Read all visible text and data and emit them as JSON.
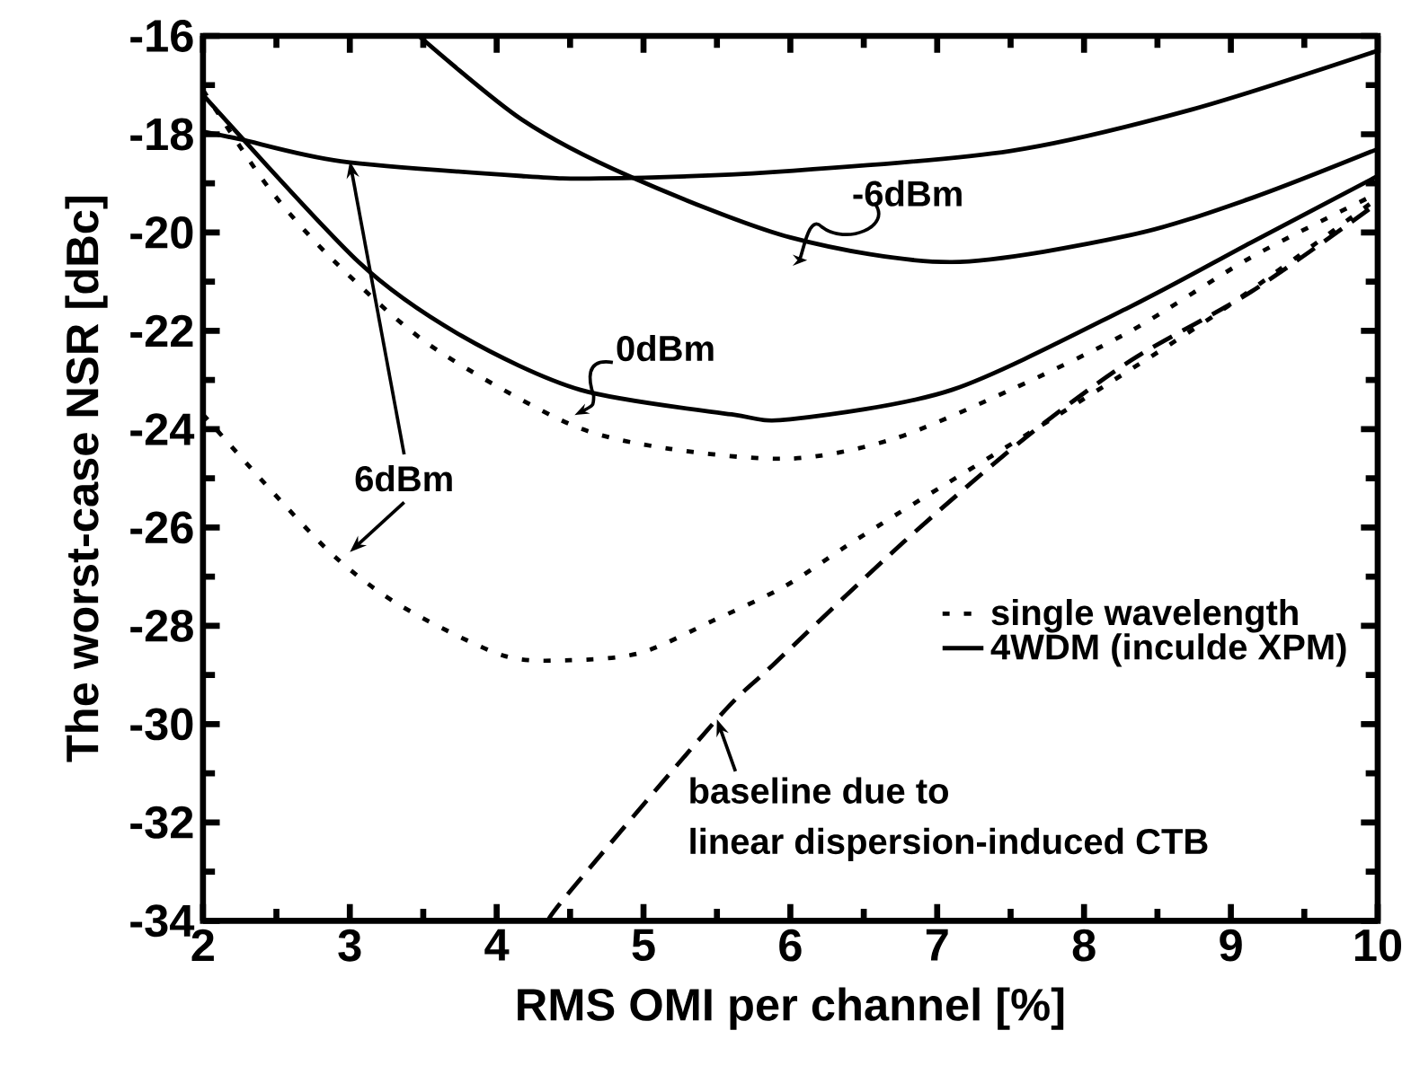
{
  "chart_data": {
    "type": "line",
    "xlabel": "RMS OMI per channel [%]",
    "ylabel": "The worst-case NSR [dBc]",
    "xlim": [
      2,
      10
    ],
    "ylim": [
      -34,
      -16
    ],
    "xticks": [
      2,
      3,
      4,
      5,
      6,
      7,
      8,
      9,
      10
    ],
    "yticks": [
      -34,
      -32,
      -30,
      -28,
      -26,
      -24,
      -22,
      -20,
      -18,
      -16
    ],
    "grid": false,
    "legend": "bottom right",
    "marker": "none",
    "series": [
      {
        "name": "single wavelength",
        "color": "#000000",
        "line_style": "dotted",
        "x": [
          2,
          2.45,
          2.9,
          3.55,
          4.5,
          5.18,
          6.0,
          6.7,
          7.5,
          8.32,
          9.14,
          10
        ],
        "values": [
          -17.1,
          -19.1,
          -20.6,
          -22.3,
          -23.9,
          -24.4,
          -24.6,
          -24.2,
          -23.2,
          -22.0,
          -20.5,
          -19.2
        ]
      },
      {
        "name": "4WDM (inculde XPM)",
        "color": "#000000",
        "line_style": "solid",
        "x": [
          2,
          3.06,
          3.76,
          4.57,
          5.6,
          6.0,
          7.1,
          8.32,
          9.14,
          10
        ],
        "values": [
          -17.2,
          -20.6,
          -22.1,
          -23.2,
          -23.7,
          -23.8,
          -23.2,
          -21.5,
          -20.2,
          -18.85
        ]
      },
      {
        "color": "#000000",
        "line_style": "solid",
        "x": [
          3.47,
          4.17,
          4.9,
          6.0,
          7.1,
          8.32,
          9.14,
          10
        ],
        "values": [
          -16.0,
          -17.7,
          -18.85,
          -20.1,
          -20.6,
          -20.05,
          -19.3,
          -18.3
        ]
      },
      {
        "color": "#000000",
        "line_style": "solid",
        "x": [
          2,
          2.25,
          2.94,
          4.17,
          4.7,
          5.88,
          7.5,
          8.73,
          10
        ],
        "values": [
          -17.95,
          -18.1,
          -18.55,
          -18.85,
          -18.9,
          -18.77,
          -18.34,
          -17.5,
          -16.3
        ]
      },
      {
        "color": "#000000",
        "line_style": "dotted",
        "x": [
          2,
          2.45,
          2.9,
          3.35,
          4.04,
          4.5,
          4.98,
          5.47,
          5.96,
          6.37,
          6.85,
          7.83,
          8.93,
          10
        ],
        "values": [
          -23.7,
          -25.2,
          -26.6,
          -27.6,
          -28.6,
          -28.7,
          -28.55,
          -27.9,
          -27.2,
          -26.4,
          -25.5,
          -23.7,
          -21.6,
          -19.3
        ]
      },
      {
        "color": "#000000",
        "line_style": "dashed",
        "x": [
          4.35,
          4.5,
          5.5,
          5.88,
          6.77,
          7.59,
          8.32,
          9.14,
          10
        ],
        "values": [
          -34.0,
          -33.4,
          -29.9,
          -28.8,
          -26.3,
          -24.2,
          -22.6,
          -21.2,
          -19.4
        ]
      }
    ],
    "annotations": [
      "-6dBm",
      "0dBm",
      {
        "text": "6dBm",
        "x": 3.0,
        "y": -18.55
      },
      {
        "text": "baseline due to",
        "x": 5.5,
        "y": -29.9
      },
      "linear dispersion-induced CTB"
    ]
  }
}
